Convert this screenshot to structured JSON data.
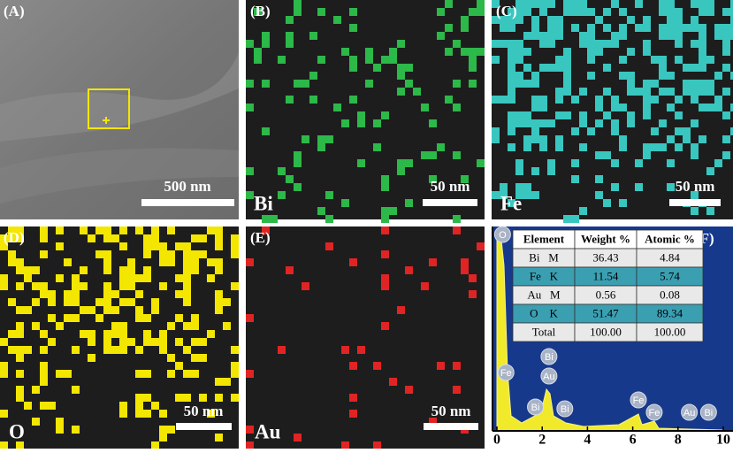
{
  "panels": [
    {
      "label": "(A)",
      "scale_bar": "500 nm"
    },
    {
      "label": "(B)",
      "scale_bar": "50 nm",
      "element": "Bi"
    },
    {
      "label": "(C)",
      "scale_bar": "50 nm",
      "element": "Fe"
    },
    {
      "label": "(D)",
      "scale_bar": "50 nm",
      "element": "O"
    },
    {
      "label": "(E)",
      "scale_bar": "50 nm",
      "element": "Au"
    },
    {
      "label": "(F)"
    }
  ],
  "table": {
    "header": [
      "Element",
      "Weight %",
      "Atomic %"
    ],
    "rows": [
      [
        "Bi   M",
        "36.43",
        "4.84"
      ],
      [
        "Fe   K",
        "11.54",
        "5.74"
      ],
      [
        "Au   M",
        "0.56",
        "0.08"
      ],
      [
        "O    K",
        "51.47",
        "89.34"
      ],
      [
        "Total",
        "100.00",
        "100.00"
      ]
    ]
  },
  "spectrum": {
    "xlim": [
      0,
      10
    ],
    "xticks": [
      0,
      2,
      4,
      6,
      8,
      10
    ],
    "peaks": [
      {
        "label": "O",
        "x": 0.25
      },
      {
        "label": "Fe",
        "x": 0.4
      },
      {
        "label": "Bi",
        "x": 2.3
      },
      {
        "label": "Au",
        "x": 2.3
      },
      {
        "label": "Bi",
        "x": 1.7
      },
      {
        "label": "Bi",
        "x": 3.0
      },
      {
        "label": "Fe",
        "x": 6.25
      },
      {
        "label": "Fe",
        "x": 6.95
      },
      {
        "label": "Au",
        "x": 8.5
      },
      {
        "label": "Bi",
        "x": 9.35
      }
    ]
  }
}
